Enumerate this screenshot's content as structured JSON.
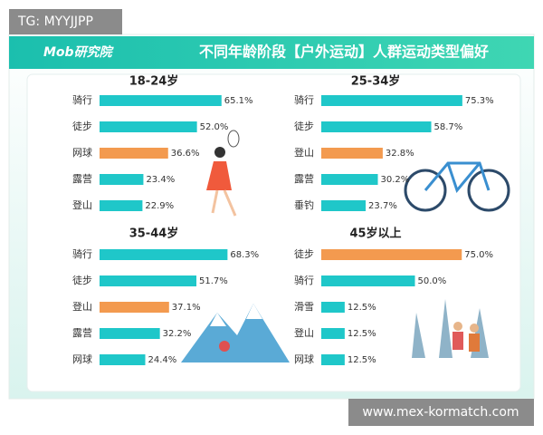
{
  "watermark": "TG: MYYJJPP",
  "header": {
    "logo": "Mob研究院",
    "title": "不同年龄阶段【户外运动】人群运动类型偏好"
  },
  "footer": "www.mex-kormatch.com",
  "chart_data": [
    {
      "type": "bar",
      "orientation": "horizontal",
      "title": "18-24岁",
      "categories": [
        "骑行",
        "徒步",
        "网球",
        "露营",
        "登山"
      ],
      "values": [
        65.1,
        52.0,
        36.6,
        23.4,
        22.9
      ],
      "value_labels": [
        "65.1%",
        "52.0%",
        "36.6%",
        "23.4%",
        "22.9%"
      ],
      "colors": [
        "#1fc7c9",
        "#1fc7c9",
        "#f39a4f",
        "#1fc7c9",
        "#1fc7c9"
      ]
    },
    {
      "type": "bar",
      "orientation": "horizontal",
      "title": "25-34岁",
      "categories": [
        "骑行",
        "徒步",
        "登山",
        "露营",
        "垂钓"
      ],
      "values": [
        75.3,
        58.7,
        32.8,
        30.2,
        23.7
      ],
      "value_labels": [
        "75.3%",
        "58.7%",
        "32.8%",
        "30.2%",
        "23.7%"
      ],
      "colors": [
        "#1fc7c9",
        "#1fc7c9",
        "#f39a4f",
        "#1fc7c9",
        "#1fc7c9"
      ]
    },
    {
      "type": "bar",
      "orientation": "horizontal",
      "title": "35-44岁",
      "categories": [
        "骑行",
        "徒步",
        "登山",
        "露营",
        "网球"
      ],
      "values": [
        68.3,
        51.7,
        37.1,
        32.2,
        24.4
      ],
      "value_labels": [
        "68.3%",
        "51.7%",
        "37.1%",
        "32.2%",
        "24.4%"
      ],
      "colors": [
        "#1fc7c9",
        "#1fc7c9",
        "#f39a4f",
        "#1fc7c9",
        "#1fc7c9"
      ]
    },
    {
      "type": "bar",
      "orientation": "horizontal",
      "title": "45岁以上",
      "categories": [
        "徒步",
        "骑行",
        "滑雪",
        "登山",
        "网球"
      ],
      "values": [
        75.0,
        50.0,
        12.5,
        12.5,
        12.5
      ],
      "value_labels": [
        "75.0%",
        "50.0%",
        "12.5%",
        "12.5%",
        "12.5%"
      ],
      "colors": [
        "#f39a4f",
        "#1fc7c9",
        "#1fc7c9",
        "#1fc7c9",
        "#1fc7c9"
      ]
    }
  ]
}
